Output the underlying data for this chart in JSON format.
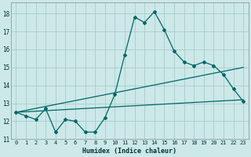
{
  "title": "",
  "xlabel": "Humidex (Indice chaleur)",
  "background_color": "#cce8e8",
  "grid_color": "#aacccc",
  "line_color": "#006666",
  "x_values": [
    0,
    1,
    2,
    3,
    4,
    5,
    6,
    7,
    8,
    9,
    10,
    11,
    12,
    13,
    14,
    15,
    16,
    17,
    18,
    19,
    20,
    21,
    22,
    23
  ],
  "y_main": [
    12.5,
    12.3,
    12.1,
    12.7,
    11.4,
    12.1,
    12.0,
    11.4,
    11.4,
    12.2,
    13.5,
    15.7,
    17.8,
    17.5,
    18.1,
    17.1,
    15.9,
    15.3,
    15.1,
    15.3,
    15.1,
    14.6,
    13.8,
    13.1
  ],
  "y_line1_start": 12.5,
  "y_line1_end": 13.2,
  "y_line2_start": 12.5,
  "y_line2_end": 15.0,
  "ylim": [
    11,
    18.6
  ],
  "xlim": [
    -0.5,
    23.5
  ],
  "yticks": [
    11,
    12,
    13,
    14,
    15,
    16,
    17,
    18
  ],
  "xticks": [
    0,
    1,
    2,
    3,
    4,
    5,
    6,
    7,
    8,
    9,
    10,
    11,
    12,
    13,
    14,
    15,
    16,
    17,
    18,
    19,
    20,
    21,
    22,
    23
  ],
  "xlabel_fontsize": 6,
  "tick_fontsize": 5,
  "linewidth": 0.9,
  "marker_size": 2.0
}
